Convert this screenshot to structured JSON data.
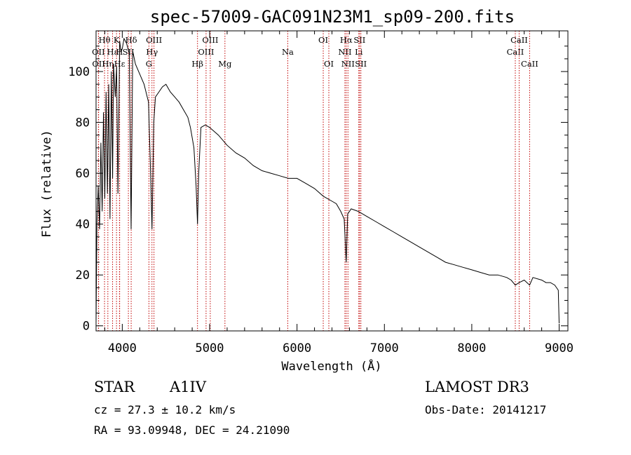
{
  "chart_data": {
    "type": "line",
    "title": "spec-57009-GAC091N23M1_sp09-200.fits",
    "xlabel": "Wavelength (Å)",
    "ylabel": "Flux (relative)",
    "xlim": [
      3700,
      9100
    ],
    "ylim": [
      -2,
      116
    ],
    "x_ticks": [
      4000,
      5000,
      6000,
      7000,
      8000,
      9000
    ],
    "y_ticks": [
      0,
      20,
      40,
      60,
      80,
      100
    ],
    "series": [
      {
        "name": "spectrum",
        "x": [
          3700,
          3710,
          3725,
          3740,
          3755,
          3770,
          3785,
          3800,
          3815,
          3830,
          3845,
          3860,
          3875,
          3889,
          3900,
          3920,
          3935,
          3950,
          3970,
          3985,
          4000,
          4020,
          4050,
          4080,
          4101,
          4120,
          4150,
          4200,
          4250,
          4300,
          4320,
          4340,
          4360,
          4380,
          4420,
          4460,
          4500,
          4550,
          4600,
          4650,
          4700,
          4750,
          4780,
          4820,
          4845,
          4861,
          4875,
          4900,
          4950,
          5000,
          5100,
          5200,
          5300,
          5400,
          5500,
          5600,
          5700,
          5800,
          5900,
          6000,
          6100,
          6200,
          6300,
          6400,
          6450,
          6500,
          6540,
          6563,
          6580,
          6620,
          6700,
          6800,
          6900,
          7000,
          7100,
          7200,
          7300,
          7400,
          7500,
          7600,
          7700,
          7800,
          7900,
          8000,
          8100,
          8200,
          8300,
          8400,
          8450,
          8498,
          8542,
          8600,
          8662,
          8700,
          8800,
          8850,
          8900,
          8950,
          8990,
          9000
        ],
        "y": [
          1,
          40,
          55,
          38,
          72,
          45,
          84,
          50,
          92,
          52,
          95,
          42,
          100,
          58,
          103,
          90,
          102,
          52,
          112,
          108,
          109,
          113,
          111,
          107,
          38,
          108,
          103,
          99,
          95,
          88,
          65,
          38,
          80,
          90,
          92,
          94,
          95,
          92,
          90,
          88,
          85,
          82,
          78,
          70,
          55,
          40,
          60,
          78,
          79,
          78,
          75,
          71,
          68,
          66,
          63,
          61,
          60,
          59,
          58,
          58,
          56,
          54,
          51,
          49,
          48,
          45,
          42,
          25,
          44,
          46,
          45,
          43,
          41,
          39,
          37,
          35,
          33,
          31,
          29,
          27,
          25,
          24,
          23,
          22,
          21,
          20,
          20,
          19,
          18,
          16,
          17,
          18,
          16,
          19,
          18,
          17,
          17,
          16,
          14,
          1
        ]
      }
    ],
    "lines": [
      {
        "label": "OII",
        "wave": 3727,
        "row": 2
      },
      {
        "label": "OII",
        "wave": 3729,
        "row": 3
      },
      {
        "label": "Hθ",
        "wave": 3797,
        "row": 1
      },
      {
        "label": "Hη",
        "wave": 3835,
        "row": 3
      },
      {
        "label": "Hε",
        "wave": 3889,
        "row": 2
      },
      {
        "label": "K",
        "wave": 3934,
        "row": 1
      },
      {
        "label": "H",
        "wave": 3968,
        "row": 2
      },
      {
        "label": "Hε",
        "wave": 3970,
        "row": 3
      },
      {
        "label": "SII",
        "wave": 4070,
        "row": 2
      },
      {
        "label": "Hδ",
        "wave": 4102,
        "row": 1
      },
      {
        "label": "G",
        "wave": 4305,
        "row": 3
      },
      {
        "label": "Hγ",
        "wave": 4340,
        "row": 2
      },
      {
        "label": "OIII",
        "wave": 4363,
        "row": 1
      },
      {
        "label": "Hβ",
        "wave": 4861,
        "row": 3
      },
      {
        "label": "OIII",
        "wave": 4959,
        "row": 2
      },
      {
        "label": "OIII",
        "wave": 5007,
        "row": 1
      },
      {
        "label": "Mg",
        "wave": 5175,
        "row": 3
      },
      {
        "label": "Na",
        "wave": 5894,
        "row": 2
      },
      {
        "label": "OI",
        "wave": 6300,
        "row": 1
      },
      {
        "label": "OI",
        "wave": 6364,
        "row": 3
      },
      {
        "label": "NII",
        "wave": 6548,
        "row": 2
      },
      {
        "label": "Hα",
        "wave": 6563,
        "row": 1
      },
      {
        "label": "NII",
        "wave": 6583,
        "row": 3
      },
      {
        "label": "Li",
        "wave": 6707,
        "row": 2
      },
      {
        "label": "SII",
        "wave": 6716,
        "row": 1
      },
      {
        "label": "SII",
        "wave": 6731,
        "row": 3
      },
      {
        "label": "CaII",
        "wave": 8498,
        "row": 2
      },
      {
        "label": "CaII",
        "wave": 8542,
        "row": 1
      },
      {
        "label": "CaII",
        "wave": 8662,
        "row": 3
      }
    ]
  },
  "info": {
    "object_class": "STAR",
    "subclass": "A1IV",
    "survey": "LAMOST DR3",
    "cz": "cz = 27.3 ± 10.2 km/s",
    "obs_date": "Obs-Date: 20141217",
    "radec": "RA =  93.09948, DEC =  24.21090"
  }
}
